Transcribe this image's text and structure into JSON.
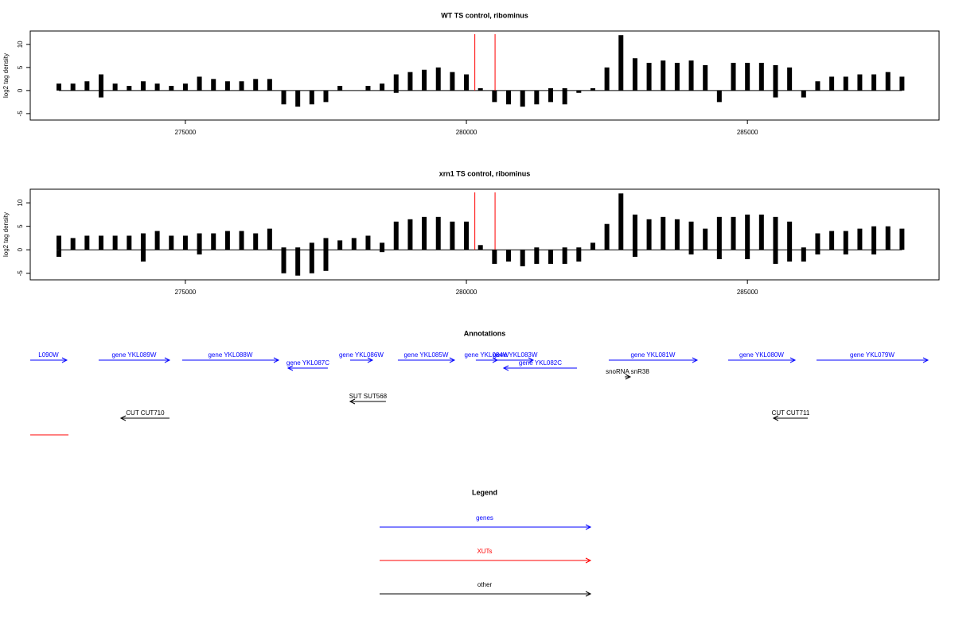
{
  "chart_data": [
    {
      "type": "bar",
      "title": "WT TS control, ribominus",
      "ylabel": "log2 tag density",
      "xlim": [
        272240,
        288410
      ],
      "ylim": [
        -6.4,
        12.9
      ],
      "xticks": [
        275000,
        280000,
        285000
      ],
      "yticks": [
        -5,
        0,
        5,
        10
      ],
      "markers_x": [
        280150,
        280510
      ],
      "marker_color": "#ff0000",
      "x": [
        272750,
        273000,
        273250,
        273500,
        273750,
        274000,
        274250,
        274500,
        274750,
        275000,
        275250,
        275500,
        275750,
        276000,
        276250,
        276500,
        276750,
        277000,
        277250,
        277500,
        277750,
        278000,
        278250,
        278500,
        278750,
        279000,
        279250,
        279500,
        279750,
        280000,
        280250,
        280500,
        280750,
        281000,
        281250,
        281500,
        281750,
        282000,
        282250,
        282500,
        282750,
        283000,
        283250,
        283500,
        283750,
        284000,
        284250,
        284500,
        284750,
        285000,
        285250,
        285500,
        285750,
        286000,
        286250,
        286500,
        286750,
        287000,
        287250,
        287500,
        287750
      ],
      "series": [
        {
          "color": "#000000",
          "values": [
            1.5,
            1.5,
            2,
            3.5,
            1.5,
            1,
            2,
            1.5,
            1,
            1.5,
            3,
            2.5,
            2,
            2,
            2.5,
            2.5,
            0,
            0,
            0,
            0,
            1,
            0,
            1,
            1.5,
            3.5,
            4,
            4.5,
            5,
            4,
            3.5,
            0.5,
            0,
            0,
            0,
            0,
            0.5,
            0.5,
            0,
            0.5,
            5,
            12,
            7,
            6,
            6.5,
            6,
            6.5,
            5.5,
            0,
            6,
            6,
            6,
            5.5,
            5,
            0,
            2,
            3,
            3,
            3.5,
            3.5,
            4,
            3
          ]
        },
        {
          "color": "#000000",
          "values": [
            0,
            0,
            0,
            -1.5,
            0,
            0,
            0,
            0,
            0,
            0,
            0,
            0,
            0,
            0,
            0,
            0,
            -3,
            -3.5,
            -3,
            -2.5,
            0,
            0,
            0,
            0,
            -0.5,
            0,
            0,
            0,
            0,
            0,
            0,
            -2.5,
            -3,
            -3.5,
            -3,
            -2.5,
            -3,
            -0.5,
            0,
            0,
            0,
            0,
            0,
            0,
            0,
            0,
            0,
            -2.5,
            0,
            0,
            0,
            -1.5,
            0,
            -1.5,
            0,
            0,
            0,
            0,
            0,
            0,
            0
          ]
        }
      ]
    },
    {
      "type": "bar",
      "title": "xrn1 TS control, ribominus",
      "ylabel": "log2 tag density",
      "xlim": [
        272240,
        288410
      ],
      "ylim": [
        -6.4,
        12.9
      ],
      "xticks": [
        275000,
        280000,
        285000
      ],
      "yticks": [
        -5,
        0,
        5,
        10
      ],
      "markers_x": [
        280150,
        280510
      ],
      "marker_color": "#ff0000",
      "x": [
        272750,
        273000,
        273250,
        273500,
        273750,
        274000,
        274250,
        274500,
        274750,
        275000,
        275250,
        275500,
        275750,
        276000,
        276250,
        276500,
        276750,
        277000,
        277250,
        277500,
        277750,
        278000,
        278250,
        278500,
        278750,
        279000,
        279250,
        279500,
        279750,
        280000,
        280250,
        280500,
        280750,
        281000,
        281250,
        281500,
        281750,
        282000,
        282250,
        282500,
        282750,
        283000,
        283250,
        283500,
        283750,
        284000,
        284250,
        284500,
        284750,
        285000,
        285250,
        285500,
        285750,
        286000,
        286250,
        286500,
        286750,
        287000,
        287250,
        287500,
        287750
      ],
      "series": [
        {
          "color": "#000000",
          "values": [
            3,
            2.5,
            3,
            3,
            3,
            3,
            3.5,
            4,
            3,
            3,
            3.5,
            3.5,
            4,
            4,
            3.5,
            4.5,
            0.5,
            0.5,
            1.5,
            2.5,
            2,
            2.5,
            3,
            1.5,
            6,
            6.5,
            7,
            7,
            6,
            6,
            1,
            0,
            0,
            0,
            0.5,
            0,
            0.5,
            0.5,
            1.5,
            5.5,
            12,
            7.5,
            6.5,
            7,
            6.5,
            6,
            4.5,
            7,
            7,
            7.5,
            7.5,
            7,
            6,
            0.5,
            3.5,
            4,
            4,
            4.5,
            5,
            5,
            4.5
          ]
        },
        {
          "color": "#000000",
          "values": [
            -1.5,
            0,
            0,
            0,
            0,
            0,
            -2.5,
            0,
            0,
            0,
            -1,
            0,
            0,
            0,
            0,
            0,
            -5,
            -5.5,
            -5,
            -4.5,
            0,
            0,
            0,
            -0.5,
            0,
            0,
            0,
            0,
            0,
            0,
            0,
            -3,
            -2.5,
            -3.5,
            -3,
            -3,
            -3,
            -2.5,
            0,
            0,
            0,
            -1.5,
            0,
            0,
            0,
            -1,
            0,
            -2,
            0,
            -2,
            0,
            -3,
            -2.5,
            -2.5,
            -1,
            0,
            -1,
            0,
            -1,
            0,
            0
          ]
        }
      ]
    }
  ],
  "annotations": {
    "title": "Annotations",
    "xlim": [
      272240,
      288410
    ],
    "items": [
      {
        "label": "L090W",
        "type": "gene",
        "strand": "+",
        "start": 272240,
        "end": 272890,
        "color": "#0000ff"
      },
      {
        "label": "gene YKL089W",
        "type": "gene",
        "strand": "+",
        "start": 273457,
        "end": 274717,
        "color": "#0000ff"
      },
      {
        "label": "gene YKL088W",
        "type": "gene",
        "strand": "+",
        "start": 274943,
        "end": 276657,
        "color": "#0000ff"
      },
      {
        "label": "gene YKL087C",
        "type": "gene",
        "strand": "-",
        "start": 276827,
        "end": 277535,
        "color": "#0000ff"
      },
      {
        "label": "gene YKL086W",
        "type": "gene",
        "strand": "+",
        "start": 277931,
        "end": 278328,
        "color": "#0000ff"
      },
      {
        "label": "gene YKL085W",
        "type": "gene",
        "strand": "+",
        "start": 278781,
        "end": 279786,
        "color": "#0000ff"
      },
      {
        "label": "gene YKL084W",
        "type": "gene",
        "strand": "+",
        "start": 280168,
        "end": 280551,
        "color": "#0000ff"
      },
      {
        "label": "gene YKL083W",
        "type": "gene",
        "strand": "+",
        "start": 280551,
        "end": 281188,
        "color": "#0000ff"
      },
      {
        "label": "gene YKL082C",
        "type": "gene",
        "strand": "-",
        "start": 280664,
        "end": 281967,
        "color": "#0000ff"
      },
      {
        "label": "gene YKL081W",
        "type": "gene",
        "strand": "+",
        "start": 282533,
        "end": 284105,
        "color": "#0000ff"
      },
      {
        "label": "gene YKL080W",
        "type": "gene",
        "strand": "+",
        "start": 284657,
        "end": 285847,
        "color": "#0000ff"
      },
      {
        "label": "gene YKL079W",
        "type": "gene",
        "strand": "+",
        "start": 286229,
        "end": 288211,
        "color": "#0000ff"
      },
      {
        "label": "snoRNA snR38",
        "type": "snoRNA",
        "strand": "+",
        "start": 282817,
        "end": 282915,
        "color": "#000000"
      },
      {
        "label": "SUT SUT568",
        "type": "SUT",
        "strand": "-",
        "start": 277931,
        "end": 278568,
        "color": "#000000"
      },
      {
        "label": "CUT CUT710",
        "type": "CUT",
        "strand": "-",
        "start": 273853,
        "end": 274717,
        "color": "#000000"
      },
      {
        "label": "CUT CUT711",
        "type": "CUT",
        "strand": "-",
        "start": 285464,
        "end": 286073,
        "color": "#000000"
      },
      {
        "type": "XUT",
        "strand": "+",
        "start": 272240,
        "end": 272920,
        "color": "#ff0000"
      }
    ]
  },
  "legend": {
    "title": "Legend",
    "entries": [
      {
        "label": "genes",
        "color": "#0000ff"
      },
      {
        "label": "XUTs",
        "color": "#ff0000"
      },
      {
        "label": "other",
        "color": "#000000"
      }
    ]
  }
}
